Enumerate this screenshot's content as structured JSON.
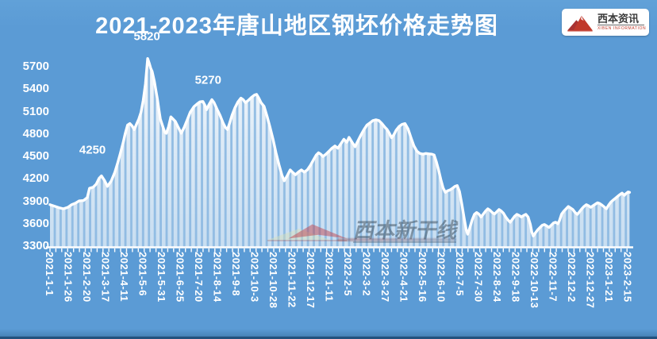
{
  "title": "2021-2023年唐山地区钢坯价格走势图",
  "logo": {
    "name": "西本资讯",
    "subtitle": "XIBEN INFORMATION"
  },
  "watermark": {
    "text": "西本新干线"
  },
  "colors": {
    "background": "#5b9bd5",
    "text": "#ffffff",
    "line": "#ffffff",
    "bottom_edge": "#2b5c88",
    "logo_red": "#c0392b",
    "watermark_red": "#c04545",
    "watermark_green": "#d8e0b8"
  },
  "chart_data": {
    "type": "area",
    "title": "2021-2023年唐山地区钢坯价格走势图",
    "xlabel": "",
    "ylabel": "",
    "x_unit": "days since 2021-1-1",
    "x_tick_interval_days": 25,
    "x_tick_labels": [
      "2021-1-1",
      "2021-1-26",
      "2021-2-20",
      "2021-3-17",
      "2021-4-11",
      "2021-5-6",
      "2021-5-31",
      "2021-6-25",
      "2021-7-20",
      "2021-8-14",
      "2021-9-8",
      "2021-10-3",
      "2021-10-28",
      "2021-11-22",
      "2021-12-17",
      "2022-1-11",
      "2022-2-5",
      "2022-3-2",
      "2022-3-27",
      "2022-4-21",
      "2022-5-16",
      "2022-6-10",
      "2022-7-5",
      "2022-7-30",
      "2022-8-24",
      "2022-9-18",
      "2022-10-13",
      "2022-11-7",
      "2022-12-2",
      "2022-12-27",
      "2023-1-21",
      "2023-2-15"
    ],
    "y_ticks": [
      5700,
      5400,
      5100,
      4800,
      4500,
      4200,
      3900,
      3600,
      3300
    ],
    "ylim": [
      3300,
      5940
    ],
    "grid": false,
    "legend": "none",
    "annotations": [
      {
        "label": "5820",
        "day": 131,
        "value": 5820
      },
      {
        "label": "5270",
        "day": 212,
        "value": 5270
      },
      {
        "label": "4250",
        "day": 57,
        "value": 4250
      }
    ],
    "series": [
      {
        "name": "唐山地区钢坯价格",
        "points": [
          [
            0,
            3865
          ],
          [
            6,
            3845
          ],
          [
            12,
            3825
          ],
          [
            18,
            3810
          ],
          [
            24,
            3830
          ],
          [
            29,
            3865
          ],
          [
            34,
            3885
          ],
          [
            39,
            3915
          ],
          [
            45,
            3920
          ],
          [
            50,
            3960
          ],
          [
            53,
            4085
          ],
          [
            58,
            4100
          ],
          [
            62,
            4140
          ],
          [
            66,
            4220
          ],
          [
            69,
            4250
          ],
          [
            73,
            4190
          ],
          [
            77,
            4110
          ],
          [
            82,
            4180
          ],
          [
            87,
            4300
          ],
          [
            91,
            4430
          ],
          [
            94,
            4540
          ],
          [
            98,
            4690
          ],
          [
            101,
            4820
          ],
          [
            104,
            4930
          ],
          [
            107,
            4950
          ],
          [
            110,
            4920
          ],
          [
            113,
            4870
          ],
          [
            116,
            4940
          ],
          [
            119,
            5010
          ],
          [
            122,
            5100
          ],
          [
            125,
            5260
          ],
          [
            128,
            5480
          ],
          [
            131,
            5820
          ],
          [
            133,
            5760
          ],
          [
            135,
            5690
          ],
          [
            137,
            5645
          ],
          [
            140,
            5510
          ],
          [
            142,
            5390
          ],
          [
            144,
            5275
          ],
          [
            146,
            5140
          ],
          [
            148,
            5010
          ],
          [
            151,
            4920
          ],
          [
            154,
            4830
          ],
          [
            156,
            4820
          ],
          [
            159,
            4910
          ],
          [
            162,
            5040
          ],
          [
            165,
            5010
          ],
          [
            168,
            4980
          ],
          [
            171,
            4920
          ],
          [
            174,
            4860
          ],
          [
            176,
            4820
          ],
          [
            180,
            4900
          ],
          [
            184,
            5000
          ],
          [
            188,
            5100
          ],
          [
            193,
            5175
          ],
          [
            197,
            5210
          ],
          [
            201,
            5240
          ],
          [
            205,
            5245
          ],
          [
            208,
            5190
          ],
          [
            210,
            5135
          ],
          [
            213,
            5200
          ],
          [
            217,
            5270
          ],
          [
            220,
            5230
          ],
          [
            224,
            5140
          ],
          [
            228,
            5060
          ],
          [
            232,
            4960
          ],
          [
            235,
            4900
          ],
          [
            238,
            4870
          ],
          [
            241,
            4960
          ],
          [
            244,
            5060
          ],
          [
            248,
            5160
          ],
          [
            252,
            5240
          ],
          [
            256,
            5290
          ],
          [
            259,
            5270
          ],
          [
            262,
            5230
          ],
          [
            266,
            5260
          ],
          [
            270,
            5300
          ],
          [
            274,
            5330
          ],
          [
            277,
            5340
          ],
          [
            280,
            5290
          ],
          [
            283,
            5230
          ],
          [
            287,
            5180
          ],
          [
            291,
            5050
          ],
          [
            295,
            4900
          ],
          [
            299,
            4740
          ],
          [
            303,
            4560
          ],
          [
            307,
            4400
          ],
          [
            311,
            4260
          ],
          [
            314,
            4185
          ],
          [
            318,
            4250
          ],
          [
            322,
            4330
          ],
          [
            325,
            4300
          ],
          [
            329,
            4265
          ],
          [
            333,
            4300
          ],
          [
            337,
            4330
          ],
          [
            341,
            4300
          ],
          [
            345,
            4330
          ],
          [
            349,
            4390
          ],
          [
            353,
            4460
          ],
          [
            357,
            4530
          ],
          [
            360,
            4560
          ],
          [
            363,
            4540
          ],
          [
            366,
            4510
          ],
          [
            370,
            4540
          ],
          [
            374,
            4580
          ],
          [
            378,
            4620
          ],
          [
            382,
            4650
          ],
          [
            386,
            4620
          ],
          [
            390,
            4680
          ],
          [
            394,
            4740
          ],
          [
            398,
            4700
          ],
          [
            401,
            4765
          ],
          [
            405,
            4700
          ],
          [
            409,
            4640
          ],
          [
            413,
            4720
          ],
          [
            417,
            4800
          ],
          [
            421,
            4870
          ],
          [
            425,
            4930
          ],
          [
            429,
            4960
          ],
          [
            433,
            4990
          ],
          [
            437,
            5000
          ],
          [
            441,
            4990
          ],
          [
            445,
            4950
          ],
          [
            449,
            4900
          ],
          [
            452,
            4870
          ],
          [
            455,
            4820
          ],
          [
            458,
            4760
          ],
          [
            461,
            4800
          ],
          [
            464,
            4860
          ],
          [
            468,
            4910
          ],
          [
            472,
            4940
          ],
          [
            476,
            4950
          ],
          [
            480,
            4880
          ],
          [
            484,
            4760
          ],
          [
            488,
            4650
          ],
          [
            492,
            4580
          ],
          [
            496,
            4550
          ],
          [
            500,
            4540
          ],
          [
            504,
            4550
          ],
          [
            508,
            4545
          ],
          [
            512,
            4540
          ],
          [
            515,
            4530
          ],
          [
            518,
            4440
          ],
          [
            521,
            4330
          ],
          [
            524,
            4200
          ],
          [
            527,
            4090
          ],
          [
            530,
            4030
          ],
          [
            533,
            4050
          ],
          [
            536,
            4060
          ],
          [
            539,
            4080
          ],
          [
            543,
            4110
          ],
          [
            546,
            4120
          ],
          [
            549,
            4040
          ],
          [
            552,
            3880
          ],
          [
            555,
            3700
          ],
          [
            558,
            3530
          ],
          [
            560,
            3470
          ],
          [
            563,
            3560
          ],
          [
            566,
            3660
          ],
          [
            569,
            3735
          ],
          [
            572,
            3760
          ],
          [
            575,
            3740
          ],
          [
            578,
            3700
          ],
          [
            581,
            3740
          ],
          [
            584,
            3780
          ],
          [
            587,
            3810
          ],
          [
            590,
            3790
          ],
          [
            593,
            3760
          ],
          [
            596,
            3740
          ],
          [
            599,
            3770
          ],
          [
            602,
            3800
          ],
          [
            605,
            3780
          ],
          [
            608,
            3750
          ],
          [
            611,
            3700
          ],
          [
            614,
            3660
          ],
          [
            617,
            3630
          ],
          [
            620,
            3670
          ],
          [
            623,
            3710
          ],
          [
            626,
            3735
          ],
          [
            629,
            3720
          ],
          [
            632,
            3700
          ],
          [
            635,
            3720
          ],
          [
            638,
            3735
          ],
          [
            641,
            3700
          ],
          [
            644,
            3600
          ],
          [
            646,
            3500
          ],
          [
            648,
            3445
          ],
          [
            651,
            3490
          ],
          [
            654,
            3530
          ],
          [
            657,
            3560
          ],
          [
            660,
            3590
          ],
          [
            663,
            3600
          ],
          [
            666,
            3580
          ],
          [
            669,
            3560
          ],
          [
            672,
            3590
          ],
          [
            675,
            3620
          ],
          [
            678,
            3630
          ],
          [
            681,
            3610
          ],
          [
            683,
            3650
          ],
          [
            686,
            3740
          ],
          [
            689,
            3780
          ],
          [
            692,
            3810
          ],
          [
            695,
            3840
          ],
          [
            698,
            3820
          ],
          [
            701,
            3800
          ],
          [
            704,
            3760
          ],
          [
            707,
            3735
          ],
          [
            710,
            3770
          ],
          [
            713,
            3810
          ],
          [
            716,
            3840
          ],
          [
            719,
            3865
          ],
          [
            722,
            3850
          ],
          [
            725,
            3830
          ],
          [
            728,
            3850
          ],
          [
            731,
            3870
          ],
          [
            734,
            3890
          ],
          [
            737,
            3880
          ],
          [
            740,
            3860
          ],
          [
            743,
            3835
          ],
          [
            746,
            3810
          ],
          [
            749,
            3860
          ],
          [
            752,
            3900
          ],
          [
            755,
            3925
          ],
          [
            758,
            3950
          ],
          [
            761,
            3975
          ],
          [
            764,
            4000
          ],
          [
            767,
            4020
          ],
          [
            770,
            3990
          ],
          [
            772,
            4010
          ],
          [
            775,
            4035
          ],
          [
            777,
            4030
          ]
        ]
      }
    ]
  }
}
